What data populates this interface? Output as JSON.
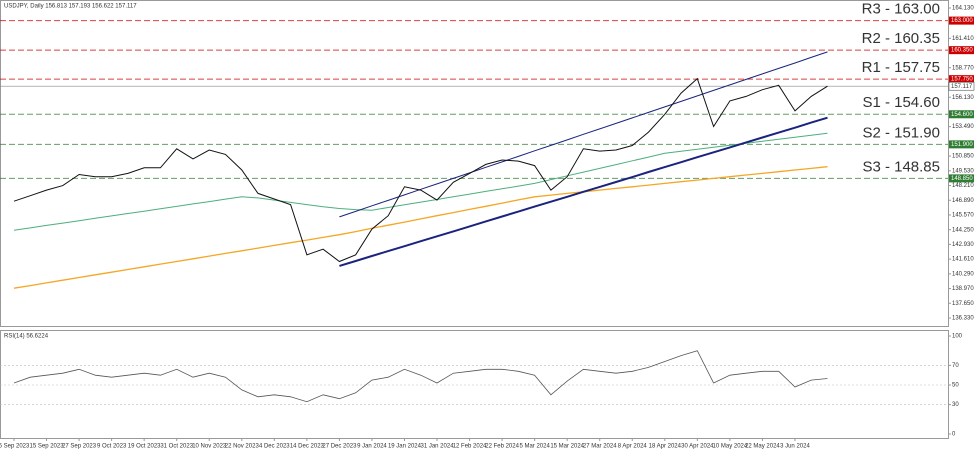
{
  "chart_data": {
    "type": "line",
    "title": "USDJPY, Daily  156.813 157.193 156.622 157.117",
    "categories": [
      "5 Sep 2023",
      null,
      "15 Sep 2023",
      null,
      "27 Sep 2023",
      null,
      "9 Oct 2023",
      null,
      "19 Oct 2023",
      null,
      "31 Oct 2023",
      null,
      "10 Nov 2023",
      null,
      "22 Nov 2023",
      null,
      "4 Dec 2023",
      null,
      "14 Dec 2023",
      null,
      "27 Dec 2023",
      null,
      "9 Jan 2024",
      null,
      "19 Jan 2024",
      null,
      "31 Jan 2024",
      null,
      "12 Feb 2024",
      null,
      "22 Feb 2024",
      null,
      "5 Mar 2024",
      null,
      "15 Mar 2024",
      null,
      "27 Mar 2024",
      null,
      "8 Apr 2024",
      null,
      "18 Apr 2024",
      null,
      "30 Apr 2024",
      null,
      "10 May 2024",
      null,
      "22 May 2024",
      null,
      "3 Jun 2024",
      null,
      null
    ],
    "series": [
      {
        "color": "#4caf7d",
        "width": 1,
        "values": [
          144.2,
          144.41,
          144.63,
          144.84,
          145.06,
          145.27,
          145.49,
          145.7,
          145.91,
          146.13,
          146.34,
          146.56,
          146.77,
          146.99,
          147.2,
          147.1,
          146.9,
          146.7,
          146.5,
          146.3,
          146.15,
          146.05,
          146.0,
          146.24,
          146.48,
          146.72,
          146.96,
          147.2,
          147.44,
          147.68,
          147.92,
          148.16,
          148.4,
          148.74,
          149.08,
          149.41,
          149.75,
          150.09,
          150.43,
          150.76,
          151.1,
          151.28,
          151.46,
          151.64,
          151.82,
          152.0,
          152.18,
          152.36,
          152.54,
          152.72,
          152.9
        ]
      },
      {
        "color": "#f5a623",
        "width": 1.3,
        "values": [
          139.0,
          139.24,
          139.48,
          139.72,
          139.96,
          140.2,
          140.44,
          140.68,
          140.92,
          141.16,
          141.4,
          141.64,
          141.88,
          142.12,
          142.36,
          142.6,
          142.84,
          143.08,
          143.32,
          143.56,
          143.8,
          144.08,
          144.37,
          144.65,
          144.93,
          145.22,
          145.5,
          145.78,
          146.07,
          146.35,
          146.63,
          146.92,
          147.2,
          147.35,
          147.5,
          147.65,
          147.8,
          147.95,
          148.1,
          148.25,
          148.4,
          148.55,
          148.7,
          148.85,
          149.0,
          149.15,
          149.3,
          149.45,
          149.6,
          149.75,
          149.9
        ]
      },
      {
        "color": "#1a237e",
        "width": 2,
        "values": [
          null,
          null,
          null,
          null,
          null,
          null,
          null,
          null,
          null,
          null,
          null,
          null,
          null,
          null,
          null,
          null,
          null,
          null,
          null,
          null,
          141.0,
          141.44,
          141.89,
          142.33,
          142.77,
          143.22,
          143.66,
          144.1,
          144.54,
          144.99,
          145.43,
          145.87,
          146.32,
          146.76,
          147.2,
          147.65,
          148.09,
          148.53,
          148.97,
          149.42,
          149.86,
          150.3,
          150.75,
          151.19,
          151.63,
          152.08,
          152.52,
          152.96,
          153.4,
          153.85,
          154.29
        ]
      },
      {
        "color": "#1a237e",
        "width": 1,
        "values": [
          null,
          null,
          null,
          null,
          null,
          null,
          null,
          null,
          null,
          null,
          null,
          null,
          null,
          null,
          null,
          null,
          null,
          null,
          null,
          null,
          145.4,
          145.89,
          146.39,
          146.88,
          147.37,
          147.87,
          148.36,
          148.85,
          149.34,
          149.84,
          150.33,
          150.82,
          151.32,
          151.81,
          152.3,
          152.8,
          153.29,
          153.78,
          154.27,
          154.77,
          155.26,
          155.75,
          156.25,
          156.74,
          157.23,
          157.73,
          158.22,
          158.71,
          159.2,
          159.7,
          160.19
        ]
      },
      {
        "color": "#111111",
        "width": 1,
        "values": [
          146.8,
          147.3,
          147.8,
          148.2,
          149.2,
          149.0,
          149.0,
          149.3,
          149.8,
          149.8,
          151.5,
          150.6,
          151.4,
          151.0,
          149.6,
          147.5,
          147.0,
          146.5,
          142.0,
          142.5,
          141.4,
          142.0,
          144.3,
          145.5,
          148.1,
          147.8,
          146.9,
          148.5,
          149.3,
          150.1,
          150.5,
          150.4,
          150.0,
          147.8,
          149.0,
          151.5,
          151.3,
          151.4,
          151.8,
          153.0,
          154.6,
          156.5,
          157.8,
          153.5,
          155.8,
          156.2,
          156.8,
          157.2,
          154.9,
          156.2,
          157.117
        ]
      }
    ],
    "last_price": 157.117,
    "levels": [
      {
        "label": "R3 - 163.00",
        "value": 163.0,
        "axis_label": "163.000",
        "color": "#cc0000"
      },
      {
        "label": "R2 - 160.35",
        "value": 160.35,
        "axis_label": "160.350",
        "color": "#cc0000"
      },
      {
        "label": "R1 - 157.75",
        "value": 157.75,
        "axis_label": "157.750",
        "color": "#cc0000"
      },
      {
        "label": "S1 - 154.60",
        "value": 154.6,
        "axis_label": "154.600",
        "color": "#2e7d32"
      },
      {
        "label": "S2 - 151.90",
        "value": 151.9,
        "axis_label": "151.900",
        "color": "#2e7d32"
      },
      {
        "label": "S3 - 148.85",
        "value": 148.85,
        "axis_label": "148.850",
        "color": "#2e7d32"
      }
    ],
    "ylim": [
      136.33,
      164.13
    ],
    "yticks": [
      {
        "value": 136.33,
        "label": "136.330"
      },
      {
        "value": 137.65,
        "label": "137.650"
      },
      {
        "value": 138.97,
        "label": "138.970"
      },
      {
        "value": 140.29,
        "label": "140.290"
      },
      {
        "value": 141.61,
        "label": "141.610"
      },
      {
        "value": 142.93,
        "label": "142.930"
      },
      {
        "value": 144.25,
        "label": "144.250"
      },
      {
        "value": 145.57,
        "label": "145.570"
      },
      {
        "value": 146.89,
        "label": "146.890"
      },
      {
        "value": 148.21,
        "label": "148.210"
      },
      {
        "value": 149.53,
        "label": "149.530"
      },
      {
        "value": 150.85,
        "label": "150.850"
      },
      {
        "value": 153.49,
        "label": "153.490"
      },
      {
        "value": 156.13,
        "label": "156.130"
      },
      {
        "value": 158.77,
        "label": "158.770"
      },
      {
        "value": 161.41,
        "label": "161.410"
      },
      {
        "value": 164.13,
        "label": "164.130"
      }
    ],
    "rsi": {
      "title": "RSI(14) 56.6224",
      "color": "#555555",
      "values": [
        52,
        58,
        60,
        62,
        66,
        60,
        58,
        60,
        62,
        60,
        66,
        58,
        62,
        58,
        45,
        38,
        40,
        38,
        33,
        40,
        36,
        42,
        55,
        58,
        66,
        60,
        52,
        62,
        64,
        66,
        66,
        64,
        60,
        40,
        54,
        66,
        64,
        62,
        64,
        68,
        74,
        80,
        85,
        52,
        60,
        62,
        64,
        64,
        48,
        55,
        56.6224
      ],
      "ylim": [
        0,
        100
      ],
      "yticks": [
        0,
        30,
        50,
        70,
        100
      ],
      "grid": [
        30,
        50,
        70
      ]
    }
  }
}
